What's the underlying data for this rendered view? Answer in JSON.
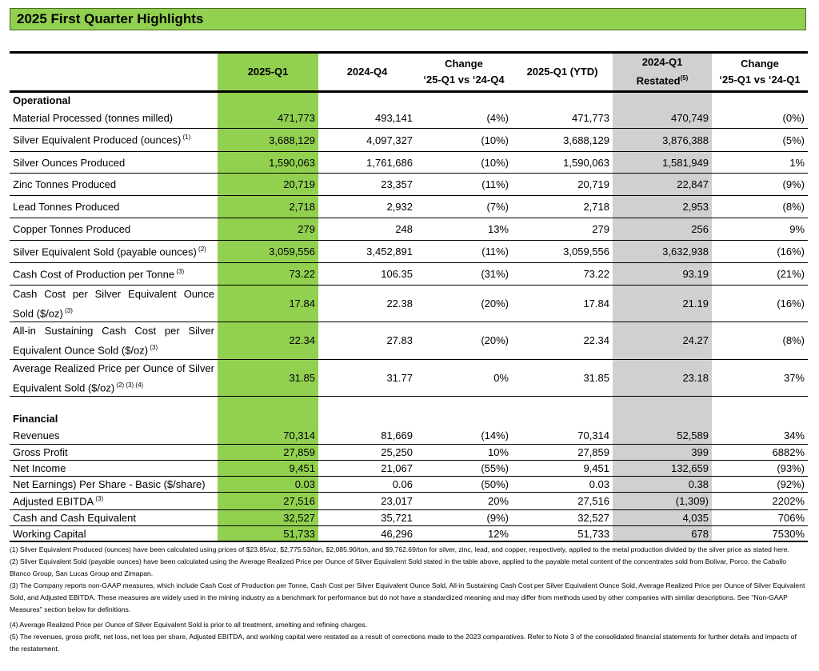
{
  "title": "2025 First Quarter Highlights",
  "headers": [
    "",
    "2025-Q1",
    "2024-Q4",
    "Change\n‘25-Q1 vs ‘24-Q4",
    "2025-Q1 (YTD)",
    "2024-Q1\nRestated",
    "Change\n‘25-Q1 vs ‘24-Q1"
  ],
  "header_sup": "(5)",
  "sections": [
    {
      "name": "Operational",
      "rows": [
        {
          "label": "Material Processed (tonnes milled)",
          "sup": "",
          "h": 26,
          "v": [
            "471,773",
            "493,141",
            "(4%)",
            "471,773",
            "470,749",
            "(0%)"
          ]
        },
        {
          "label": "Silver Equivalent Produced (ounces)",
          "sup": " (1)",
          "h": 29,
          "v": [
            "3,688,129",
            "4,097,327",
            "(10%)",
            "3,688,129",
            "3,876,388",
            "(5%)"
          ]
        },
        {
          "label": "Silver Ounces Produced",
          "sup": "",
          "h": 27,
          "v": [
            "1,590,063",
            "1,761,686",
            "(10%)",
            "1,590,063",
            "1,581,949",
            "1%"
          ]
        },
        {
          "label": "Zinc Tonnes Produced",
          "sup": "",
          "h": 28,
          "v": [
            "20,719",
            "23,357",
            "(11%)",
            "20,719",
            "22,847",
            "(9%)"
          ]
        },
        {
          "label": "Lead Tonnes Produced",
          "sup": "",
          "h": 28,
          "v": [
            "2,718",
            "2,932",
            "(7%)",
            "2,718",
            "2,953",
            "(8%)"
          ]
        },
        {
          "label": "Copper Tonnes Produced",
          "sup": "",
          "h": 28,
          "v": [
            "279",
            "248",
            "13%",
            "279",
            "256",
            "9%"
          ]
        },
        {
          "label": "Silver Equivalent Sold (payable ounces)",
          "sup": " (2)",
          "h": 28,
          "v": [
            "3,059,556",
            "3,452,891",
            "(11%)",
            "3,059,556",
            "3,632,938",
            "(16%)"
          ]
        },
        {
          "label": "Cash Cost of Production per Tonne",
          "sup": " (3)",
          "h": 28,
          "v": [
            "73.22",
            "106.35",
            "(31%)",
            "73.22",
            "93.19",
            "(21%)"
          ]
        },
        {
          "label": "Cash Cost per Silver Equivalent Ounce Sold ($/oz)",
          "sup": " (3)",
          "h": 44,
          "j": true,
          "v": [
            "17.84",
            "22.38",
            "(20%)",
            "17.84",
            "21.19",
            "(16%)"
          ]
        },
        {
          "label": "All-in Sustaining Cash Cost per Silver Equivalent Ounce Sold ($/oz)",
          "sup": " (3)",
          "h": 44,
          "j": true,
          "v": [
            "22.34",
            "27.83",
            "(20%)",
            "22.34",
            "24.27",
            "(8%)"
          ]
        },
        {
          "label": "Average Realized Price per Ounce of Silver Equivalent Sold ($/oz)",
          "sup": " (2) (3) (4)",
          "h": 46,
          "j": true,
          "v": [
            "31.85",
            "31.77",
            "0%",
            "31.85",
            "23.18",
            "37%"
          ]
        }
      ]
    },
    {
      "name": "Financial",
      "rows": [
        {
          "label": "Revenues",
          "sup": "",
          "h": 22,
          "v": [
            "70,314",
            "81,669",
            "(14%)",
            "70,314",
            "52,589",
            "34%"
          ]
        },
        {
          "label": "Gross Profit",
          "sup": "",
          "h": 20,
          "v": [
            "27,859",
            "25,250",
            "10%",
            "27,859",
            "399",
            "6882%"
          ]
        },
        {
          "label": "Net Income",
          "sup": "",
          "h": 20,
          "v": [
            "9,451",
            "21,067",
            "(55%)",
            "9,451",
            "132,659",
            "(93%)"
          ]
        },
        {
          "label": "Net Earnings) Per Share - Basic ($/share)",
          "sup": "",
          "h": 20,
          "v": [
            "0.03",
            "0.06",
            "(50%)",
            "0.03",
            "0.38",
            "(92%)"
          ]
        },
        {
          "label": "Adjusted EBITDA",
          "sup": " (3)",
          "h": 22,
          "v": [
            "27,516",
            "23,017",
            "20%",
            "27,516",
            "(1,309)",
            "2202%"
          ]
        },
        {
          "label": "Cash and Cash Equivalent",
          "sup": "",
          "h": 20,
          "v": [
            "32,527",
            "35,721",
            "(9%)",
            "32,527",
            "4,035",
            "706%"
          ]
        },
        {
          "label": "Working Capital",
          "sup": "",
          "h": 20,
          "v": [
            "51,733",
            "46,296",
            "12%",
            "51,733",
            "678",
            "7530%"
          ]
        }
      ]
    }
  ],
  "footnotes": [
    "(1) Silver Equivalent Produced (ounces) have been calculated using prices of $23.85/oz, $2,775.53/ton, $2,085.90/ton, and $9,762.69/ton for silver, zinc, lead, and copper, respectively, applied to the metal production divided by the silver price as stated here.",
    "(2) Silver Equivalent Sold (payable ounces) have been calculated using the Average Realized Price per Ounce of Silver Equivalent Sold stated in the table above, applied to the payable metal content of the concentrates sold from Bolivar, Porco, the Caballo Blanco Group, San Lucas Group and Zimapan.",
    "(3) The Company reports non-GAAP measures, which include Cash Cost of Production per Tonne, Cash Cost per Silver Equivalent Ounce Sold, All-in Sustaining Cash Cost per Silver Equivalent Ounce Sold, Average Realized Price per Ounce of Silver Equivalent Sold, and Adjusted EBITDA. These measures are widely used in the mining industry as a benchmark for performance but do not have a standardized meaning and may differ from methods used by other companies with similar descriptions. See \"Non-GAAP Measures\" section below for definitions.",
    "(4) Average Realized Price per Ounce of Silver Equivalent Sold is prior to all treatment, smelting and refining charges.",
    "(5) The revenues, gross profit, net loss, net loss per share, Adjusted EBITDA, and working capital were restated as a result of corrections made to the 2023 comparatives. Refer to Note 3 of the consolidated financial statements for further details and impacts of the restatement."
  ],
  "colors": {
    "highlight": "#92d050",
    "restated": "#d0d0d0"
  }
}
